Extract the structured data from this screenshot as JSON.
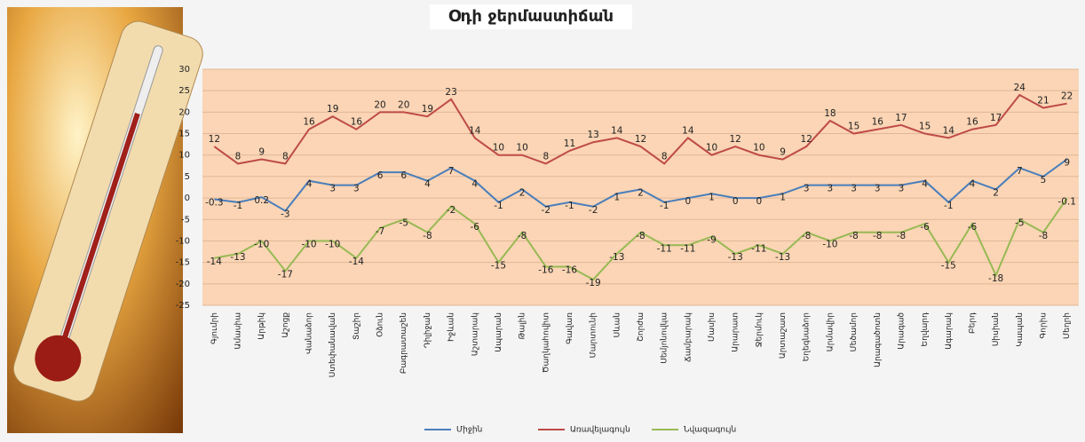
{
  "chart_data": {
    "type": "line",
    "title": "Օդի ջերմաստիճան",
    "categories": [
      "Գյումրի",
      "Ամասիա",
      "Արթիկ",
      "Աշոցք",
      "Վանաձոր",
      "Ստեփանավան",
      "Տաշիր",
      "Օձուն",
      "Բագրատաշեն",
      "Դիլիջան",
      "Իջևան",
      "Աշտարակ",
      "Ապարան",
      "Թալին",
      "Ծաղկահովիտ",
      "Գավառ",
      "Մարտունի",
      "Սևան",
      "Շորժա",
      "Սեմյոնովկա",
      "Ճամբարակ",
      "Մասիս",
      "Արարատ",
      "Ջերմուկ",
      "Արտաշատ",
      "Եղեգնաձոր",
      "Արմավիր",
      "Մեծամոր",
      "Արագածոտն",
      "Արագած",
      "Եղվարդ",
      "Ագարակ",
      "Բերդ",
      "Սիսիան",
      "Կապան",
      "Գորիս",
      "Մեղրի"
    ],
    "series": [
      {
        "name": "Միջին",
        "color": "#4a7ebb",
        "values": [
          -0.3,
          -1,
          0.2,
          -3,
          4,
          3,
          3,
          6,
          6,
          4,
          7,
          4,
          -1,
          2,
          -2,
          -1,
          -2,
          1,
          2,
          -1,
          0,
          1,
          0,
          0,
          1,
          3,
          3,
          3,
          3,
          3,
          4,
          -1,
          4,
          2,
          7,
          5,
          9
        ]
      },
      {
        "name": "Առավելագույն",
        "color": "#be4b48",
        "values": [
          12,
          8,
          9,
          8,
          16,
          19,
          16,
          20,
          20,
          19,
          23,
          14,
          10,
          10,
          8,
          11,
          13,
          14,
          12,
          8,
          14,
          10,
          12,
          10,
          9,
          12,
          18,
          15,
          16,
          17,
          15,
          14,
          16,
          17,
          24,
          21,
          22
        ]
      },
      {
        "name": "Նվազագույն",
        "color": "#98b954",
        "values": [
          -14,
          -13,
          -10,
          -17,
          -10,
          -10,
          -14,
          -7,
          -5,
          -8,
          -2,
          -6,
          -15,
          -8,
          -16,
          -16,
          -19,
          -13,
          -8,
          -11,
          -11,
          -9,
          -13,
          -11,
          -13,
          -8,
          -10,
          -8,
          -8,
          -8,
          -6,
          -15,
          -6,
          -18,
          -5,
          -8,
          -0.1
        ]
      }
    ],
    "ylim": [
      -25,
      30
    ],
    "yticks": [
      -25,
      -20,
      -15,
      -10,
      -5,
      0,
      5,
      10,
      15,
      20,
      25,
      30
    ],
    "grid": true,
    "legend": "bottom"
  }
}
